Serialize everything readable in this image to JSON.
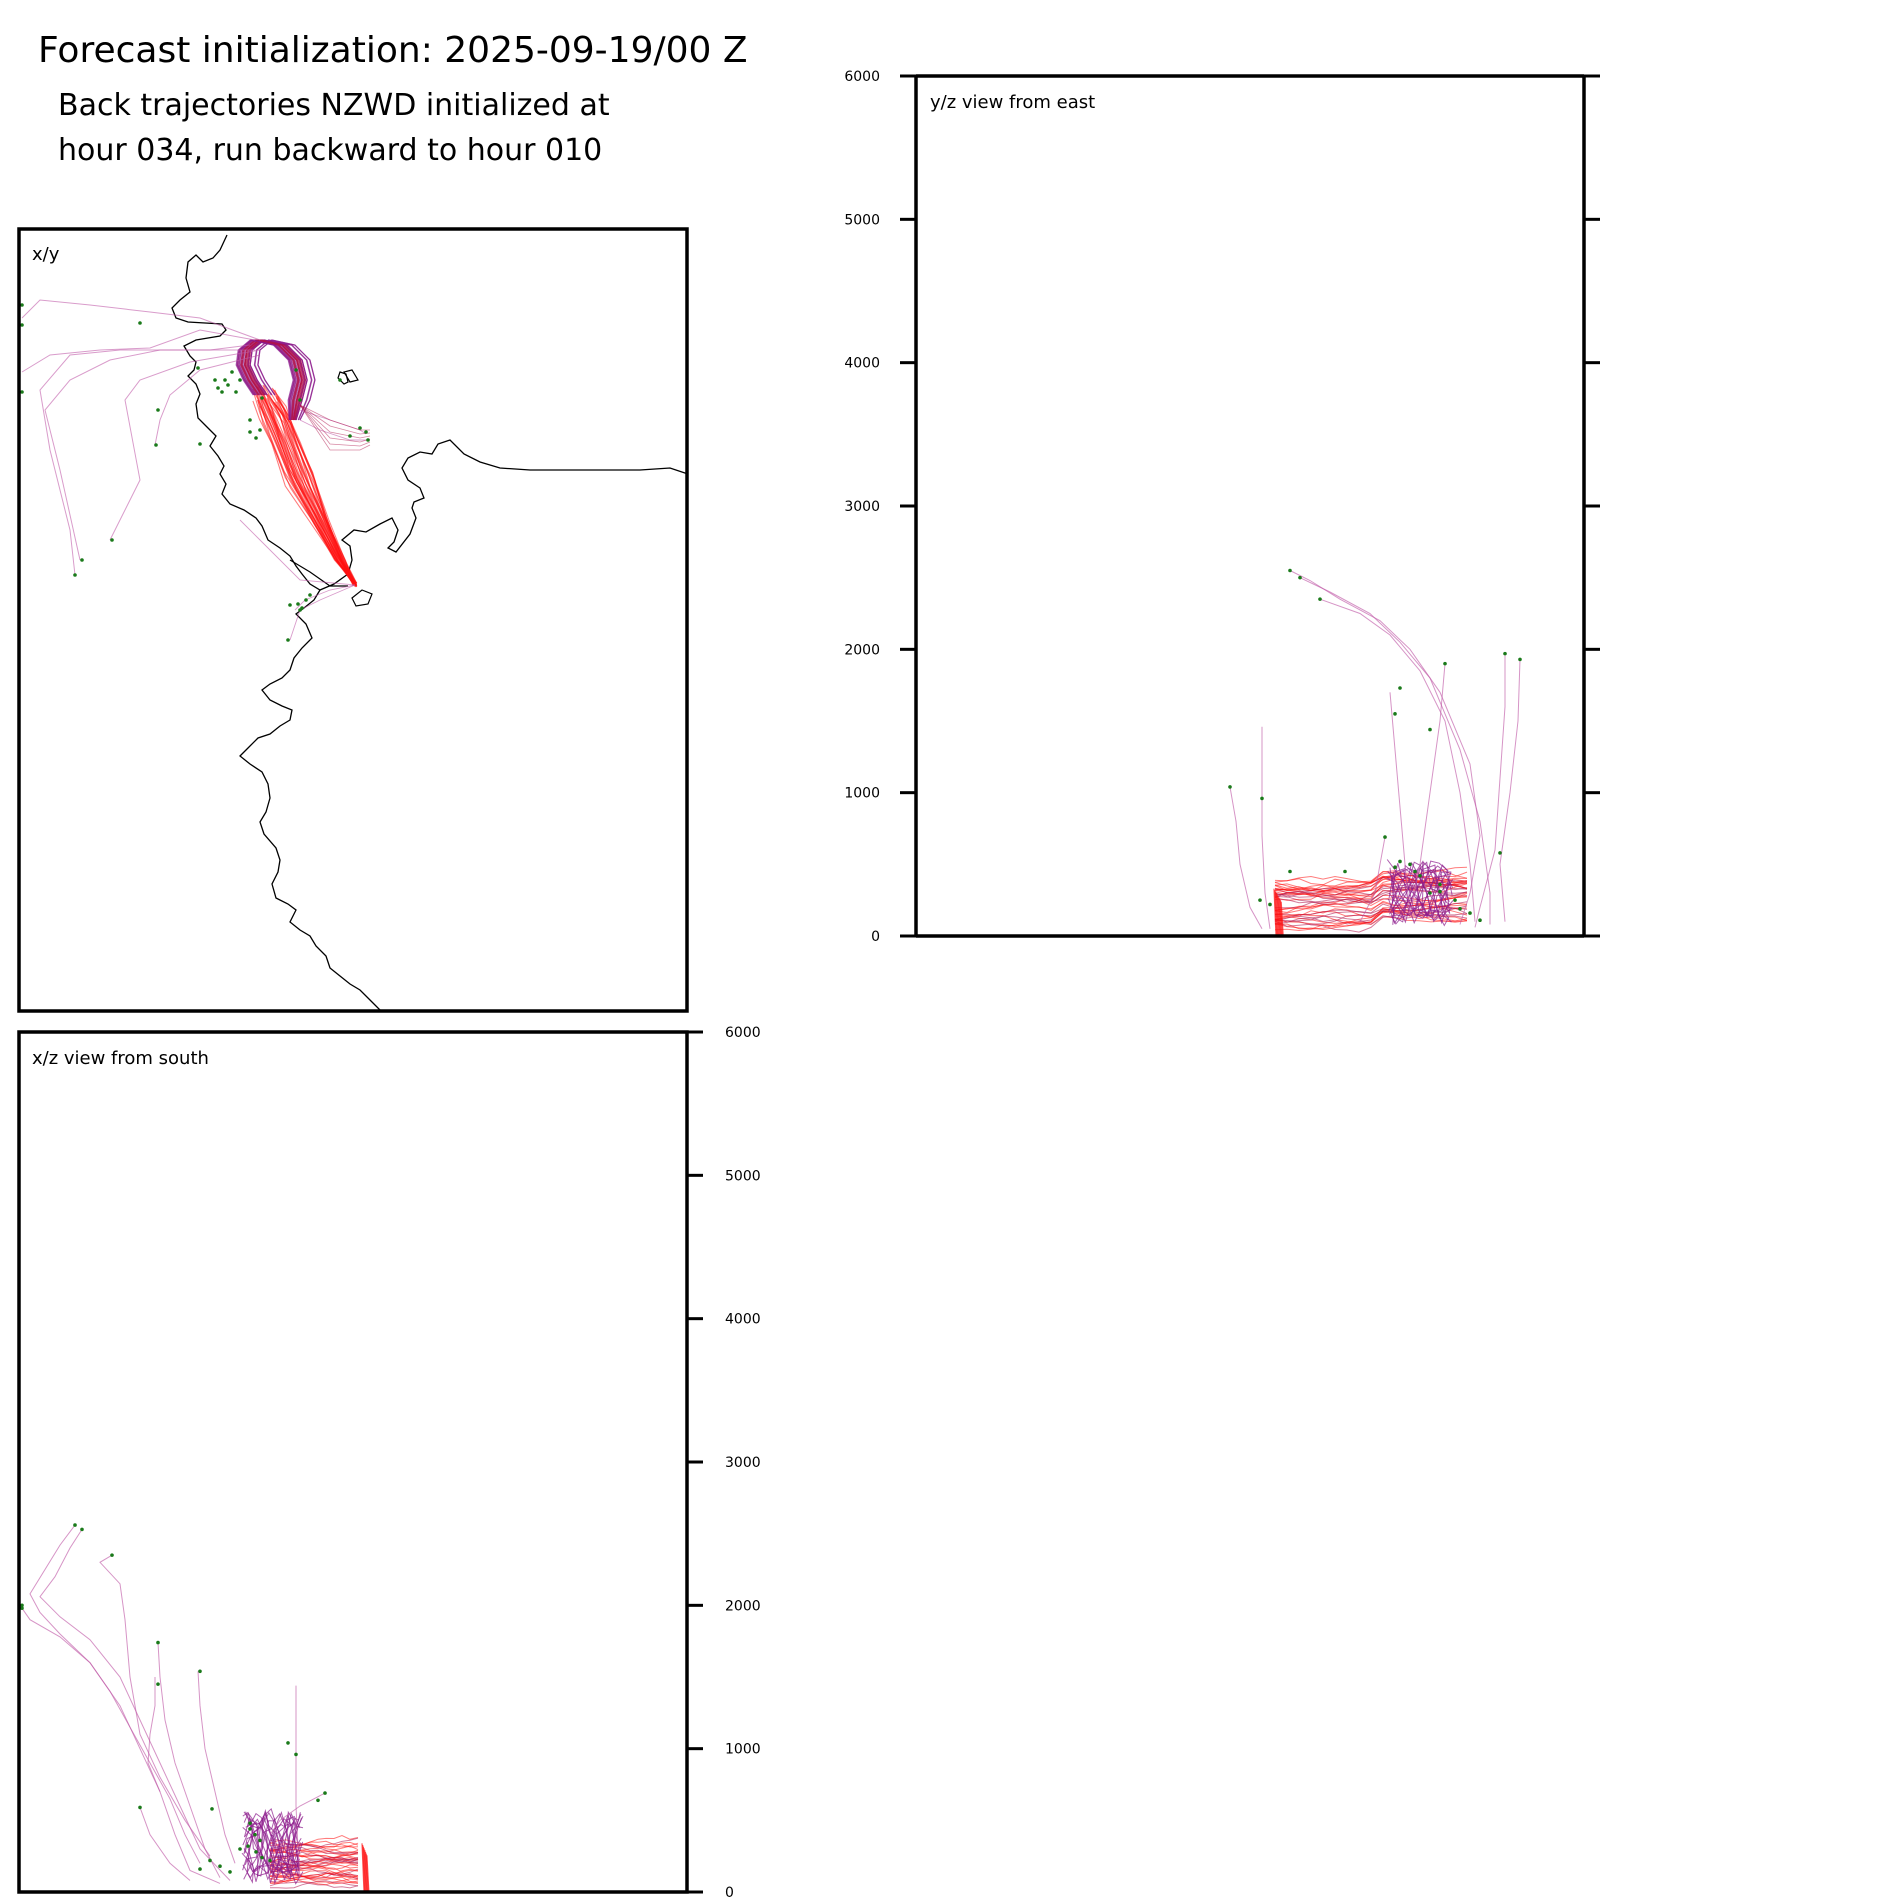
{
  "figure": {
    "title": "Forecast initialization: 2025-09-19/00 Z",
    "subtitle_line1": "Back trajectories NZWD initialized at",
    "subtitle_line2": "hour 034, run backward to hour 010"
  },
  "colors": {
    "late_trajectory": "#ff1010",
    "mid_trajectory": "#b0124a",
    "early_trajectory": "#8b1a8b",
    "faint_trajectory": "#c05aa8",
    "endpoint_marker": "#1a7a1a",
    "coastline": "#000000",
    "frame": "#000000"
  },
  "chart_data": [
    {
      "panel": "x/y",
      "type": "line",
      "label": "x/y",
      "content": "back trajectory paths over coastline map",
      "axes": "none",
      "series_summary": "dense bundle converging on release point near NZWD; outliers extend northwest"
    },
    {
      "panel": "y/z",
      "type": "line",
      "label": "y/z view from east",
      "xlabel": "",
      "ylabel": "",
      "ylim": [
        0,
        6000
      ],
      "yticks": [
        0,
        1000,
        2000,
        3000,
        4000,
        5000,
        6000
      ],
      "ytick_labels": [
        "0",
        "1000",
        "2000",
        "3000",
        "4000",
        "5000",
        "6000"
      ],
      "tick_side": "left labels, ticks both sides",
      "max_height_observed": 2550,
      "bulk_height_range": [
        0,
        600
      ]
    },
    {
      "panel": "x/z",
      "type": "line",
      "label": "x/z view from south",
      "xlabel": "",
      "ylabel": "",
      "ylim": [
        0,
        6000
      ],
      "yticks": [
        0,
        1000,
        2000,
        3000,
        4000,
        5000,
        6000
      ],
      "ytick_labels": [
        "0",
        "1000",
        "2000",
        "3000",
        "4000",
        "5000",
        "6000"
      ],
      "tick_side": "right",
      "max_height_observed": 2560,
      "bulk_height_range": [
        0,
        600
      ]
    }
  ]
}
